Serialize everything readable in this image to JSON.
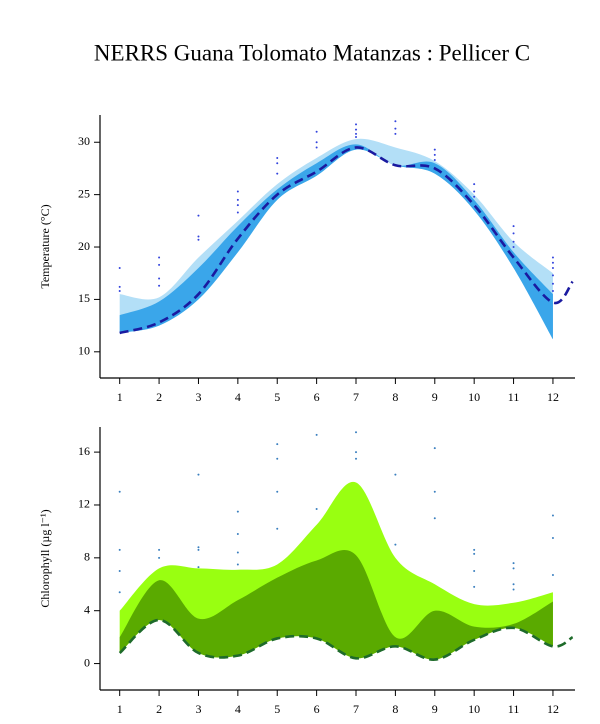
{
  "title": "NERRS Guana Tolomato Matanzas : Pellicer C",
  "chart_data": [
    {
      "type": "band",
      "y_label": "Temperature (°C)",
      "x": [
        1,
        2,
        3,
        4,
        5,
        6,
        7,
        8,
        9,
        10,
        11,
        12
      ],
      "xlim": [
        0.5,
        12.56
      ],
      "ylim": [
        7.5,
        32.6
      ],
      "xticks": [
        1,
        2,
        3,
        4,
        5,
        6,
        7,
        8,
        9,
        10,
        11,
        12
      ],
      "yticks": [
        10,
        15,
        20,
        25,
        30
      ],
      "bands": [
        {
          "color": "#b3dff7",
          "upper": [
            15.5,
            15.2,
            19,
            22.5,
            26,
            28.5,
            30.3,
            29.5,
            28.2,
            25,
            20.5,
            17.5
          ],
          "lower": [
            11.8,
            12.5,
            15,
            19.5,
            24.5,
            26.8,
            29.3,
            27.8,
            27,
            23.5,
            18,
            11.2
          ]
        },
        {
          "color": "#3aa6ea",
          "upper": [
            13.5,
            14.8,
            18,
            22,
            25.5,
            28,
            29.8,
            27.8,
            28,
            24.5,
            19.5,
            15.5
          ],
          "lower": [
            11.8,
            12.5,
            15,
            19.5,
            24.5,
            26.8,
            29.3,
            27.8,
            27,
            23.5,
            18,
            11.2
          ]
        }
      ],
      "line": {
        "color": "#1a1aa0",
        "dashed": true,
        "x": [
          1,
          2,
          3,
          4,
          5,
          6,
          7,
          8,
          9,
          10,
          11,
          12,
          12.5
        ],
        "values": [
          11.8,
          12.8,
          15.5,
          20.8,
          25,
          27.2,
          29.5,
          27.8,
          27.5,
          24,
          19,
          14.7,
          16.7
        ]
      },
      "points": {
        "color": "#3344dd",
        "x": [
          1,
          1,
          1,
          2,
          2,
          2,
          2,
          3,
          3,
          3,
          4,
          4,
          4,
          4,
          5,
          5,
          5,
          6,
          6,
          6,
          7,
          7,
          7,
          7,
          8,
          8,
          8,
          9,
          9,
          9,
          10,
          10,
          10,
          11,
          11,
          11,
          11,
          12,
          12,
          12,
          12,
          12,
          12
        ],
        "y": [
          18,
          16.2,
          15.8,
          19,
          18.3,
          17,
          16.3,
          23,
          21,
          20.7,
          25.3,
          24.5,
          24,
          23.3,
          28.5,
          28,
          27,
          31,
          30,
          29.5,
          31.7,
          31.2,
          30.8,
          30.5,
          32,
          31.3,
          30.8,
          29.3,
          28.8,
          28.3,
          26,
          25.3,
          24.8,
          22,
          21.3,
          20.5,
          20,
          19,
          18.5,
          18,
          17.3,
          16.5,
          15.8
        ]
      }
    },
    {
      "type": "band",
      "y_label": "Chlorophyll (µg l⁻¹)",
      "x": [
        1,
        2,
        3,
        4,
        5,
        6,
        7,
        8,
        9,
        10,
        11,
        12
      ],
      "xlim": [
        0.5,
        12.56
      ],
      "ylim": [
        -2,
        17.9
      ],
      "xticks": [
        1,
        2,
        3,
        4,
        5,
        6,
        7,
        8,
        9,
        10,
        11,
        12
      ],
      "yticks": [
        0,
        4,
        8,
        12,
        16
      ],
      "bands": [
        {
          "color": "#99ff11",
          "upper": [
            4,
            7.2,
            7.2,
            7.1,
            7.5,
            10.5,
            13.7,
            8,
            6,
            4.5,
            4.6,
            5.4
          ],
          "lower": [
            0.8,
            3.3,
            0.8,
            0.6,
            1.9,
            1.9,
            0.4,
            1.3,
            0.3,
            1.8,
            2.7,
            1.3
          ]
        },
        {
          "color": "#5aaa00",
          "upper": [
            2,
            6.3,
            3.4,
            4.8,
            6.5,
            7.8,
            8.2,
            2,
            4,
            2.8,
            3,
            4.7
          ],
          "lower": [
            0.8,
            3.3,
            0.8,
            0.6,
            1.9,
            1.9,
            0.4,
            1.3,
            0.3,
            1.8,
            2.7,
            1.3
          ]
        }
      ],
      "line": {
        "color": "#1e6b2a",
        "dashed": true,
        "x": [
          1,
          2,
          3,
          4,
          5,
          6,
          7,
          8,
          9,
          10,
          11,
          12,
          12.5
        ],
        "values": [
          0.8,
          3.3,
          0.8,
          0.6,
          1.9,
          1.9,
          0.4,
          1.3,
          0.3,
          1.8,
          2.7,
          1.3,
          2
        ]
      },
      "points": {
        "color": "#3a7fbf",
        "x": [
          1,
          1,
          1,
          1,
          2,
          2,
          3,
          3,
          3,
          3,
          4,
          4,
          4,
          4,
          5,
          5,
          5,
          5,
          6,
          6,
          7,
          7,
          7,
          8,
          8,
          9,
          9,
          9,
          10,
          10,
          10,
          10,
          11,
          11,
          11,
          11,
          12,
          12,
          12
        ],
        "y": [
          13,
          8.6,
          7,
          5.4,
          8.6,
          8,
          14.3,
          8.8,
          8.6,
          7.3,
          11.5,
          9.8,
          8.4,
          7.5,
          16.6,
          15.5,
          13,
          10.2,
          17.3,
          11.7,
          17.5,
          16,
          15.5,
          14.3,
          9,
          16.3,
          13,
          11,
          8.6,
          8.3,
          7,
          5.8,
          7.6,
          7.2,
          6,
          5.6,
          11.2,
          9.5,
          6.7
        ]
      }
    }
  ]
}
